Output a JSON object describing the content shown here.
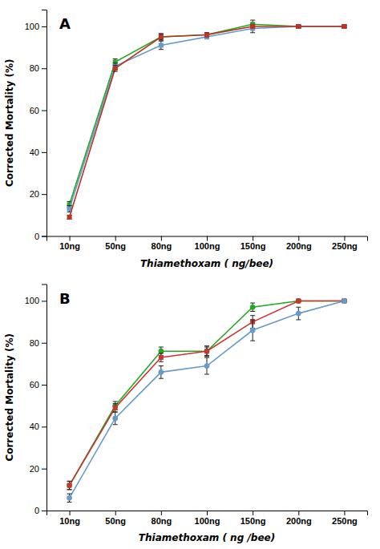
{
  "chart_data": [
    {
      "type": "line",
      "annotations": [
        "A"
      ],
      "categories": [
        "10ng",
        "50ng",
        "80ng",
        "100ng",
        "150ng",
        "200ng",
        "250ng"
      ],
      "series": [
        {
          "color": "#22aa22",
          "marker": "square",
          "values": [
            15,
            83,
            95,
            96,
            101,
            100,
            100
          ],
          "yerr": [
            1.5,
            1.5,
            1.5,
            1,
            2,
            0.5,
            0.5
          ]
        },
        {
          "color": "#6699cc",
          "marker": "square",
          "values": [
            13,
            81,
            91,
            95,
            99,
            100,
            100
          ],
          "yerr": [
            1.5,
            1.5,
            2,
            1,
            2,
            0.5,
            0.5
          ]
        },
        {
          "color": "#bb3322",
          "marker": "square",
          "values": [
            9,
            80,
            95,
            96,
            100,
            100,
            100
          ],
          "yerr": [
            1,
            1.5,
            1.5,
            1,
            0.5,
            0.5,
            0.5
          ]
        }
      ],
      "ylim": [
        0,
        108
      ],
      "yticks": [
        0,
        20,
        40,
        60,
        80,
        100
      ],
      "y_label": "Corrected Mortality (%)",
      "x_label": "Thiamethoxam ( ng/bee)",
      "grid": false
    },
    {
      "type": "line",
      "annotations": [
        "B"
      ],
      "categories": [
        "10ng",
        "50ng",
        "80ng",
        "100ng",
        "150ng",
        "200ng",
        "250ng"
      ],
      "series": [
        {
          "color": "#22aa22",
          "marker": "circle",
          "values": [
            12,
            50,
            76,
            76,
            97,
            100,
            100
          ],
          "yerr": [
            2,
            2,
            2,
            2.5,
            2,
            0.5,
            0.5
          ]
        },
        {
          "color": "#cc3333",
          "marker": "square",
          "values": [
            12,
            49,
            73,
            76,
            90,
            100,
            100
          ],
          "yerr": [
            2,
            2,
            2,
            2,
            3,
            0.5,
            0.5
          ]
        },
        {
          "color": "#6699cc",
          "marker": "circle",
          "values": [
            6,
            44,
            66,
            69,
            86,
            94,
            100
          ],
          "yerr": [
            2,
            3,
            3,
            4,
            5,
            3,
            0.5
          ]
        }
      ],
      "ylim": [
        0,
        108
      ],
      "yticks": [
        0,
        20,
        40,
        60,
        80,
        100
      ],
      "y_label": "Corrected Mortality (%)",
      "x_label": "Thiamethoxam ( ng /bee)",
      "grid": false
    }
  ]
}
